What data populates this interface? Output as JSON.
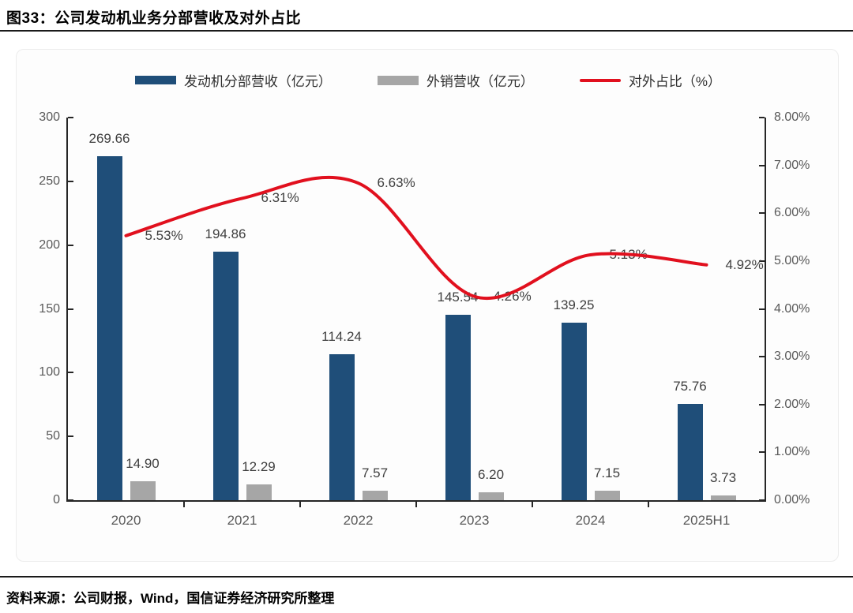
{
  "page": {
    "figure_label": "图33：公司发动机业务分部营收及对外占比",
    "source_note": "资料来源：公司财报，Wind，国信证券经济研究所整理"
  },
  "colors": {
    "bar_primary": "#1F4E79",
    "bar_secondary": "#A6A6A6",
    "line": "#E1101E",
    "axis": "#262626",
    "tick_text": "#595959",
    "data_label": "#3f3f3f"
  },
  "chart_data": {
    "type": "bar",
    "subtype": "combo-bar-line-dual-axis",
    "title": "图33：公司发动机业务分部营收及对外占比",
    "categories": [
      "2020",
      "2021",
      "2022",
      "2023",
      "2024",
      "2025H1"
    ],
    "series": [
      {
        "name": "发动机分部营收（亿元）",
        "type": "bar",
        "axis": "left",
        "color": "#1F4E79",
        "values": [
          269.66,
          194.86,
          114.24,
          145.54,
          139.25,
          75.76
        ],
        "labels": [
          "269.66",
          "194.86",
          "114.24",
          "145.54",
          "139.25",
          "75.76"
        ]
      },
      {
        "name": "外销营收（亿元）",
        "type": "bar",
        "axis": "left",
        "color": "#A6A6A6",
        "values": [
          14.9,
          12.29,
          7.57,
          6.2,
          7.15,
          3.73
        ],
        "labels": [
          "14.90",
          "12.29",
          "7.57",
          "6.20",
          "7.15",
          "3.73"
        ]
      },
      {
        "name": "对外占比（%）",
        "type": "line",
        "axis": "right",
        "color": "#E1101E",
        "smoothed": true,
        "values": [
          5.53,
          6.31,
          6.63,
          4.26,
          5.13,
          4.92
        ],
        "labels": [
          "5.53%",
          "6.31%",
          "6.63%",
          "4.26%",
          "5.13%",
          "4.92%"
        ]
      }
    ],
    "left_axis": {
      "min": 0,
      "max": 300,
      "step": 50,
      "tick_labels": [
        "300",
        "250",
        "200",
        "150",
        "100",
        "50",
        "0"
      ]
    },
    "right_axis": {
      "min": 0,
      "max": 8,
      "step": 1,
      "tick_labels": [
        "8.00%",
        "7.00%",
        "6.00%",
        "5.00%",
        "4.00%",
        "3.00%",
        "2.00%",
        "1.00%",
        "0.00%"
      ]
    },
    "legend_position": "top",
    "grid": false
  }
}
